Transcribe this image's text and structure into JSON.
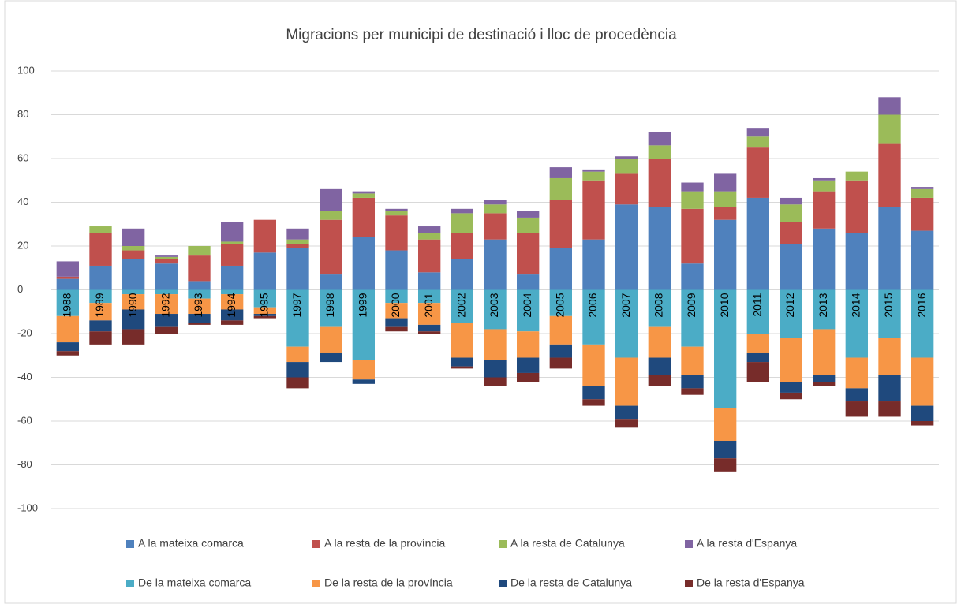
{
  "chart_data": {
    "type": "bar",
    "stacked": true,
    "title": "Migracions per municipi de destinació i lloc de procedència",
    "categories": [
      "1988",
      "1989",
      "1990",
      "1992",
      "1993",
      "1994",
      "1995",
      "1997",
      "1998",
      "1999",
      "2000",
      "2001",
      "2002",
      "2003",
      "2004",
      "2005",
      "2006",
      "2007",
      "2008",
      "2009",
      "2010",
      "2011",
      "2012",
      "2013",
      "2014",
      "2015",
      "2016"
    ],
    "series": [
      {
        "name": "A la mateixa comarca",
        "color": "#4f81bd",
        "values": [
          5,
          11,
          14,
          12,
          4,
          11,
          17,
          19,
          7,
          24,
          18,
          8,
          14,
          23,
          7,
          19,
          23,
          39,
          38,
          12,
          32,
          42,
          21,
          28,
          26,
          38,
          27
        ]
      },
      {
        "name": "A la resta de la província",
        "color": "#c0504d",
        "values": [
          1,
          15,
          4,
          2,
          12,
          10,
          15,
          2,
          25,
          18,
          16,
          15,
          12,
          12,
          19,
          22,
          27,
          14,
          22,
          25,
          6,
          23,
          10,
          17,
          24,
          29,
          15
        ]
      },
      {
        "name": "A la resta de Catalunya",
        "color": "#9bbb59",
        "values": [
          0,
          3,
          2,
          1,
          4,
          1,
          0,
          2,
          4,
          2,
          2,
          3,
          9,
          4,
          7,
          10,
          4,
          7,
          6,
          8,
          7,
          5,
          8,
          5,
          4,
          13,
          4
        ]
      },
      {
        "name": "A la resta d'Espanya",
        "color": "#8064a2",
        "values": [
          7,
          0,
          8,
          1,
          0,
          9,
          0,
          5,
          10,
          1,
          1,
          3,
          2,
          2,
          3,
          5,
          1,
          1,
          6,
          4,
          8,
          4,
          3,
          1,
          0,
          8,
          1
        ]
      },
      {
        "name": "De la mateixa comarca",
        "color": "#4bacc6",
        "values": [
          -12,
          -6,
          -2,
          -2,
          -4,
          -2,
          -8,
          -26,
          -17,
          -32,
          -6,
          -6,
          -15,
          -18,
          -19,
          -12,
          -25,
          -31,
          -17,
          -26,
          -54,
          -20,
          -22,
          -18,
          -31,
          -22,
          -31
        ]
      },
      {
        "name": "De la resta de la província",
        "color": "#f79646",
        "values": [
          -12,
          -8,
          -7,
          -9,
          -7,
          -7,
          -3,
          -7,
          -12,
          -9,
          -7,
          -10,
          -16,
          -14,
          -12,
          -13,
          -19,
          -22,
          -14,
          -13,
          -15,
          -9,
          -20,
          -21,
          -14,
          -17,
          -22
        ]
      },
      {
        "name": "De la resta de Catalunya",
        "color": "#1f497d",
        "values": [
          -4,
          -5,
          -9,
          -6,
          -4,
          -5,
          -1,
          -7,
          -4,
          -2,
          -4,
          -3,
          -4,
          -8,
          -7,
          -6,
          -6,
          -6,
          -8,
          -6,
          -8,
          -4,
          -5,
          -3,
          -6,
          -12,
          -7
        ]
      },
      {
        "name": "De la resta d'Espanya",
        "color": "#772c2a",
        "values": [
          -2,
          -6,
          -7,
          -3,
          -1,
          -2,
          -1,
          -5,
          0,
          0,
          -2,
          -1,
          -1,
          -4,
          -4,
          -5,
          -3,
          -4,
          -5,
          -3,
          -6,
          -9,
          -3,
          -2,
          -7,
          -7,
          -2
        ]
      }
    ],
    "ylim": [
      -100,
      100
    ],
    "yticks": [
      -100,
      -80,
      -60,
      -40,
      -20,
      0,
      20,
      40,
      60,
      80,
      100
    ],
    "grid": true,
    "legend": "bottom"
  }
}
